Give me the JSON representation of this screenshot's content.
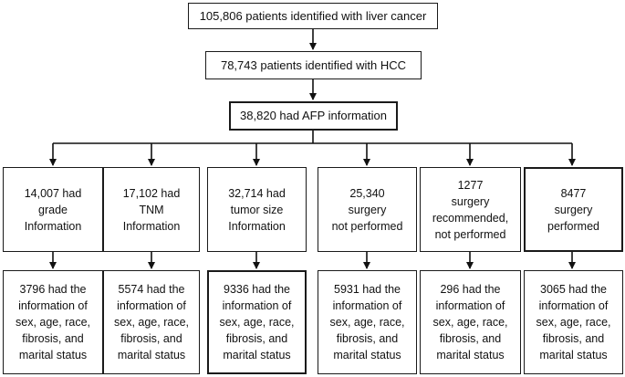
{
  "flow": {
    "step1": "105,806 patients identified with liver cancer",
    "step2": "78,743 patients identified with HCC",
    "step3": "38,820 had AFP information",
    "branches": [
      {
        "line1": "14,007 had",
        "line2": "grade",
        "line3": "Information",
        "result": [
          "3796 had the",
          "information of",
          "sex, age, race,",
          "fibrosis, and",
          "marital status"
        ]
      },
      {
        "line1": "17,102 had",
        "line2": "TNM",
        "line3": "Information",
        "result": [
          "5574 had the",
          "information of",
          "sex, age, race,",
          "fibrosis, and",
          "marital status"
        ]
      },
      {
        "line1": "32,714 had",
        "line2": "tumor size",
        "line3": "Information",
        "result": [
          "9336 had the",
          "information of",
          "sex, age, race,",
          "fibrosis, and",
          "marital status"
        ]
      },
      {
        "line1": "25,340",
        "line2": "surgery",
        "line3": "not performed",
        "result": [
          "5931 had the",
          "information of",
          "sex, age, race,",
          "fibrosis, and",
          "marital status"
        ]
      },
      {
        "line1": "1277",
        "line2": "surgery",
        "line3": "recommended,",
        "line4": "not performed",
        "result": [
          "296 had the",
          "information of",
          "sex, age, race,",
          "fibrosis, and",
          "marital status"
        ]
      },
      {
        "line1": "8477",
        "line2": "surgery",
        "line3": "performed",
        "result": [
          "3065 had the",
          "information of",
          "sex, age, race,",
          "fibrosis, and",
          "marital status"
        ]
      }
    ]
  }
}
